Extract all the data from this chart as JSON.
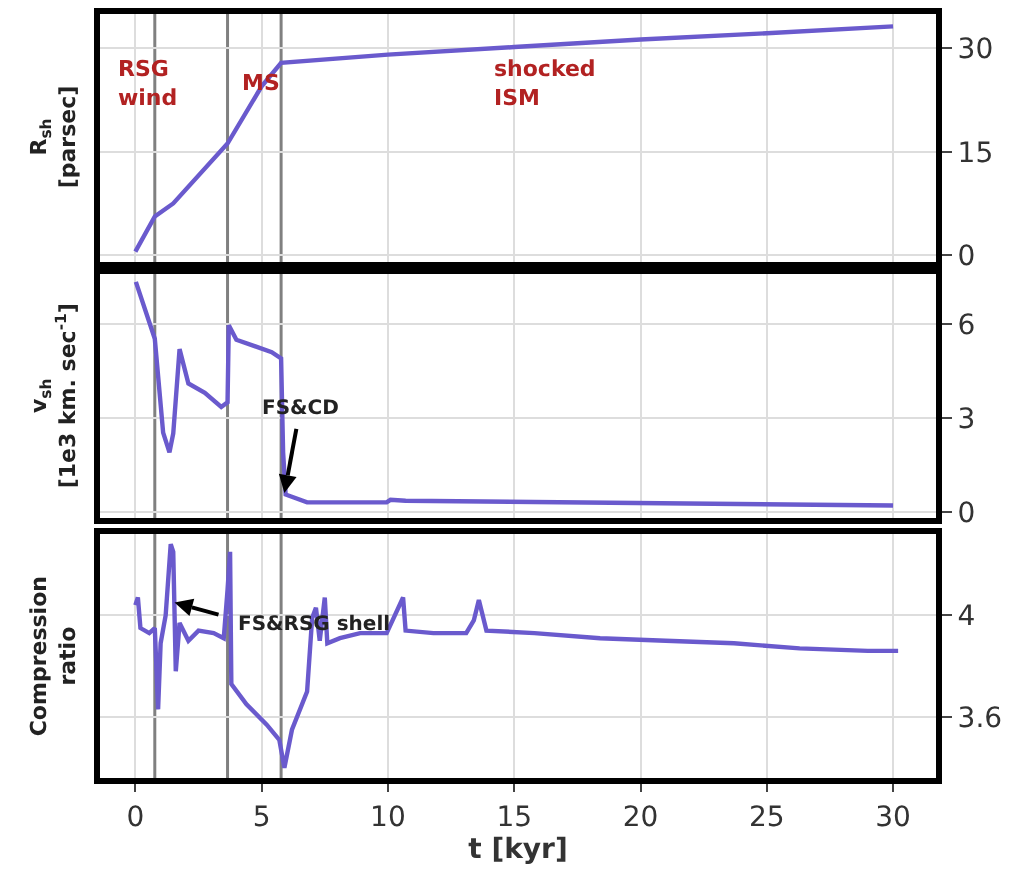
{
  "chart_data": [
    {
      "type": "line",
      "color": "#6a5acd",
      "ylabel": "R$_{sh}$\n[parsec]",
      "grid": true,
      "tick_labels": "y",
      "xlim": [
        -1.4,
        31.7
      ],
      "xticks": [
        0,
        5,
        10,
        15,
        20,
        25,
        30
      ],
      "ylim": [
        -1,
        35
      ],
      "yticks": [
        0,
        15,
        30
      ],
      "x": [
        0,
        0.77,
        1.5,
        3.65,
        5.0,
        5.77,
        10,
        15,
        20,
        25,
        30
      ],
      "values": [
        0.5,
        5.6,
        7.5,
        16.2,
        24.5,
        27.9,
        29.1,
        30.2,
        31.3,
        32.2,
        33.2
      ],
      "ref_lines": [
        {
          "axis": "x",
          "value": 0.77,
          "color": "#808080"
        },
        {
          "axis": "x",
          "value": 3.65,
          "color": "#808080"
        },
        {
          "axis": "x",
          "value": 5.77,
          "color": "#808080"
        }
      ],
      "annotations": [
        "RSG\nwind",
        "MS",
        "shocked\nISM"
      ]
    },
    {
      "type": "line",
      "color": "#6a5acd",
      "ylabel": "v$_{sh}$\n[1e3 km. sec$^{-1}$]",
      "grid": true,
      "tick_labels": "y",
      "xlim": [
        -1.4,
        31.7
      ],
      "xticks": [
        0,
        5,
        10,
        15,
        20,
        25,
        30
      ],
      "ylim": [
        -0.2,
        7.6
      ],
      "yticks": [
        0,
        3,
        6
      ],
      "x": [
        0.02,
        0.77,
        1.1,
        1.35,
        1.5,
        1.75,
        2.1,
        2.75,
        3.4,
        3.65,
        3.7,
        4.0,
        5.4,
        5.77,
        5.85,
        5.95,
        6.8,
        9.95,
        10.1,
        10.7,
        30
      ],
      "values": [
        7.35,
        5.53,
        2.53,
        1.9,
        2.5,
        5.2,
        4.1,
        3.8,
        3.35,
        3.5,
        5.96,
        5.5,
        5.1,
        4.9,
        1.9,
        0.55,
        0.3,
        0.3,
        0.38,
        0.35,
        0.2
      ],
      "ref_lines": [
        {
          "axis": "x",
          "value": 0.77,
          "color": "#808080"
        },
        {
          "axis": "x",
          "value": 3.65,
          "color": "#808080"
        },
        {
          "axis": "x",
          "value": 5.77,
          "color": "#808080"
        }
      ],
      "annotations": [
        {
          "text": "FS&CD",
          "x": 5.9,
          "y": 0.6
        }
      ]
    },
    {
      "type": "line",
      "color": "#6a5acd",
      "ylabel": "Compression\nratio",
      "xlabel": "t [kyr]",
      "grid": true,
      "xlim": [
        -1.4,
        31.7
      ],
      "xticks": [
        0,
        5,
        10,
        15,
        20,
        25,
        30
      ],
      "ylim": [
        3.36,
        4.32
      ],
      "yticks": [
        3.6,
        4.0
      ],
      "x": [
        0,
        0.1,
        0.2,
        0.55,
        0.77,
        0.9,
        1.0,
        1.2,
        1.4,
        1.5,
        1.6,
        1.75,
        2.1,
        2.5,
        3.1,
        3.5,
        3.65,
        3.75,
        3.8,
        4.4,
        5.2,
        5.7,
        5.9,
        6.2,
        6.8,
        7.0,
        7.15,
        7.3,
        7.5,
        7.6,
        8.1,
        8.9,
        9.95,
        10.6,
        10.7,
        11.8,
        13.1,
        13.4,
        13.6,
        13.9,
        15.8,
        18.4,
        21.0,
        23.7,
        26.3,
        29.0,
        30.2
      ],
      "values": [
        4.04,
        4.07,
        3.95,
        3.93,
        3.95,
        3.63,
        3.89,
        4.0,
        4.28,
        4.25,
        3.78,
        3.97,
        3.9,
        3.94,
        3.93,
        3.91,
        4.1,
        4.25,
        3.73,
        3.65,
        3.57,
        3.51,
        3.4,
        3.55,
        3.7,
        3.99,
        4.03,
        3.9,
        4.07,
        3.89,
        3.91,
        3.93,
        3.93,
        4.07,
        3.94,
        3.93,
        3.93,
        3.98,
        4.06,
        3.94,
        3.93,
        3.91,
        3.9,
        3.89,
        3.87,
        3.86,
        3.86
      ],
      "ref_lines": [
        {
          "axis": "x",
          "value": 0.77,
          "color": "#808080"
        },
        {
          "axis": "x",
          "value": 3.65,
          "color": "#808080"
        },
        {
          "axis": "x",
          "value": 5.77,
          "color": "#808080"
        }
      ],
      "annotations": [
        {
          "text": "FS&RSG shell",
          "x": 1.55,
          "y": 4.05
        }
      ]
    }
  ]
}
